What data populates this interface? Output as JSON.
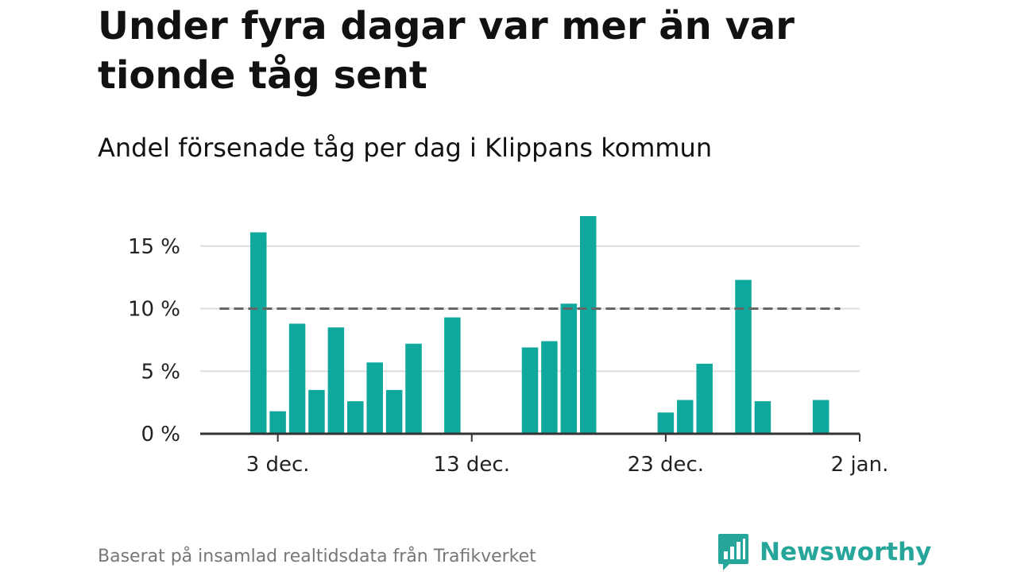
{
  "title": "Under fyra dagar var mer än var tionde tåg sent",
  "subtitle": "Andel försenade tåg per dag i Klippans kommun",
  "source": "Baserat på insamlad realtidsdata från Trafikverket",
  "brand": {
    "name": "Newsworthy",
    "logo_icon": "bar-chart-speech-bubble-icon"
  },
  "colors": {
    "bar": "#0fa89c",
    "reference_line": "#666666",
    "grid": "#dddddd",
    "axis": "#333333",
    "brand": "#26a69a"
  },
  "chart_data": {
    "type": "bar",
    "title": "Under fyra dagar var mer än var tionde tåg sent",
    "subtitle": "Andel försenade tåg per dag i Klippans kommun",
    "x_unit": "day",
    "x_range": [
      "2023-11-29",
      "2024-01-02"
    ],
    "dates": [
      "2023-12-02",
      "2023-12-03",
      "2023-12-04",
      "2023-12-05",
      "2023-12-06",
      "2023-12-07",
      "2023-12-08",
      "2023-12-09",
      "2023-12-10",
      "2023-12-11",
      "2023-12-12",
      "2023-12-13",
      "2023-12-14",
      "2023-12-15",
      "2023-12-16",
      "2023-12-17",
      "2023-12-18",
      "2023-12-19",
      "2023-12-20",
      "2023-12-21",
      "2023-12-22",
      "2023-12-23",
      "2023-12-24",
      "2023-12-25",
      "2023-12-26",
      "2023-12-27",
      "2023-12-28",
      "2023-12-29",
      "2023-12-30",
      "2023-12-31",
      "2024-01-01"
    ],
    "values": [
      16.1,
      1.8,
      8.8,
      3.5,
      8.5,
      2.6,
      5.7,
      3.5,
      7.2,
      0,
      9.3,
      0,
      0,
      0,
      6.9,
      7.4,
      10.4,
      17.4,
      0,
      0,
      0,
      1.7,
      2.7,
      5.6,
      0,
      12.3,
      2.6,
      0,
      0,
      2.7,
      0
    ],
    "ylim": [
      0,
      17.4
    ],
    "y_ticks": [
      0,
      5,
      10,
      15
    ],
    "y_tick_labels": [
      "0 %",
      "5 %",
      "10 %",
      "15 %"
    ],
    "x_ticks": [
      "2023-12-03",
      "2023-12-13",
      "2023-12-23",
      "2024-01-02"
    ],
    "x_tick_labels": [
      "3 dec.",
      "13 dec.",
      "23 dec.",
      "2 jan."
    ],
    "reference_line": {
      "value": 10,
      "from": "2023-11-30",
      "to": "2024-01-01",
      "style": "dashed"
    },
    "grid": true,
    "legend": "none"
  }
}
